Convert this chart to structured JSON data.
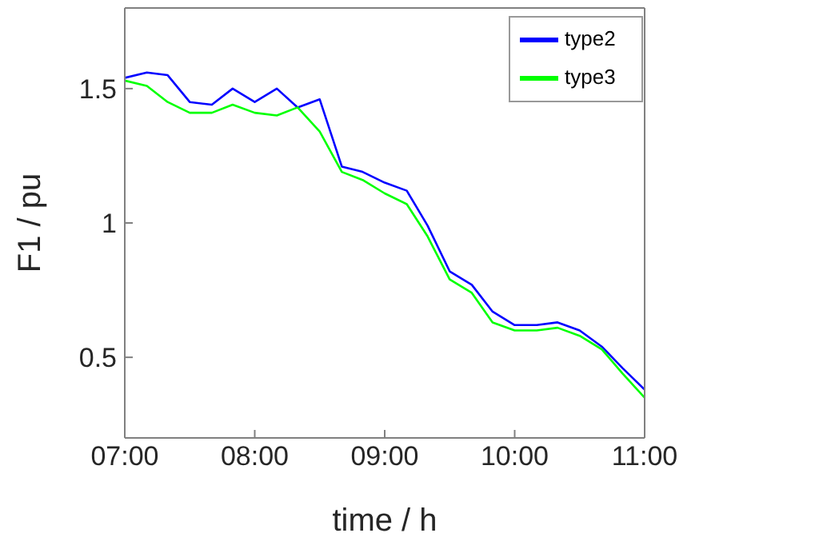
{
  "chart_data": {
    "type": "line",
    "xlabel": "time / h",
    "ylabel": "F1 / pu",
    "x": [
      7,
      7.17,
      7.33,
      7.5,
      7.67,
      7.83,
      8,
      8.17,
      8.33,
      8.5,
      8.67,
      8.83,
      9,
      9.17,
      9.33,
      9.5,
      9.67,
      9.83,
      10,
      10.17,
      10.33,
      10.5,
      10.67,
      10.83,
      11
    ],
    "series": [
      {
        "name": "type2",
        "color": "#0000ff",
        "values": [
          1.54,
          1.56,
          1.55,
          1.45,
          1.44,
          1.5,
          1.45,
          1.5,
          1.43,
          1.46,
          1.21,
          1.19,
          1.15,
          1.12,
          0.99,
          0.82,
          0.77,
          0.67,
          0.62,
          0.62,
          0.63,
          0.6,
          0.54,
          0.46,
          0.38
        ]
      },
      {
        "name": "type3",
        "color": "#00ff00",
        "values": [
          1.53,
          1.51,
          1.45,
          1.41,
          1.41,
          1.44,
          1.41,
          1.4,
          1.43,
          1.34,
          1.19,
          1.16,
          1.11,
          1.07,
          0.95,
          0.79,
          0.74,
          0.63,
          0.6,
          0.6,
          0.61,
          0.58,
          0.53,
          0.44,
          0.35
        ]
      }
    ],
    "xlim": [
      7,
      11
    ],
    "xticks": [
      {
        "value": 7,
        "label": "07:00"
      },
      {
        "value": 8,
        "label": "08:00"
      },
      {
        "value": 9,
        "label": "09:00"
      },
      {
        "value": 10,
        "label": "10:00"
      },
      {
        "value": 11,
        "label": "11:00"
      }
    ],
    "ylim": [
      0.2,
      1.8
    ],
    "yticks": [
      0.5,
      1,
      1.5
    ],
    "grid": false,
    "legend": "top right",
    "marker": "none",
    "line_style": "solid"
  }
}
